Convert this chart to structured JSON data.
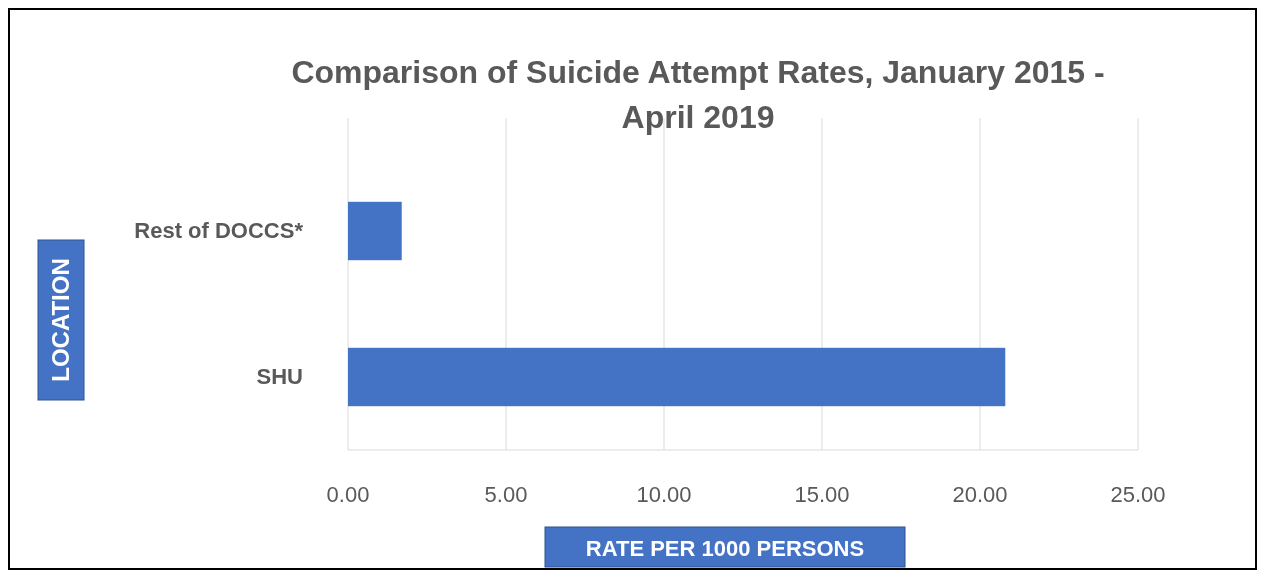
{
  "chart_data": {
    "type": "bar",
    "orientation": "horizontal",
    "title": "Comparison  of Suicide Attempt Rates, January 2015 - April 2019",
    "xlabel": "RATE PER 1000 PERSONS",
    "ylabel": "LOCATION",
    "categories": [
      "Rest of DOCCS*",
      "SHU"
    ],
    "values": [
      1.7,
      20.8
    ],
    "color": "#4472c4",
    "xlim": [
      0,
      25
    ],
    "xticks": [
      {
        "value": 0,
        "label": "0.00"
      },
      {
        "value": 5,
        "label": "5.00"
      },
      {
        "value": 10,
        "label": "10.00"
      },
      {
        "value": 15,
        "label": "15.00"
      },
      {
        "value": 20,
        "label": "20.00"
      },
      {
        "value": 25,
        "label": "25.00"
      }
    ],
    "grid": "x"
  }
}
